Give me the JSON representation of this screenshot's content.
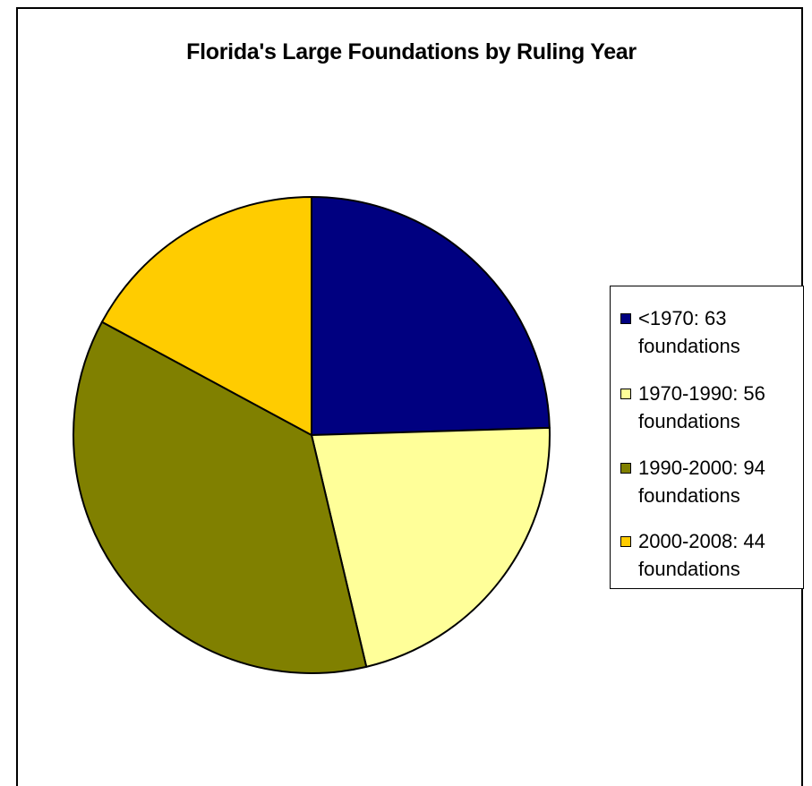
{
  "chart_data": {
    "type": "pie",
    "title": "Florida's Large Foundations by Ruling Year",
    "categories": [
      "<1970",
      "1970-1990",
      "1990-2000",
      "2000-2008"
    ],
    "values": [
      63,
      56,
      94,
      44
    ],
    "legend_labels": [
      "<1970: 63 foundations",
      "1970-1990: 56 foundations",
      "1990-2000: 94 foundations",
      "2000-2008: 44 foundations"
    ],
    "colors": [
      "#000080",
      "#FFFF99",
      "#808000",
      "#FFCC00"
    ],
    "legend_position": "right",
    "start_angle": "12 o'clock",
    "direction": "clockwise"
  }
}
